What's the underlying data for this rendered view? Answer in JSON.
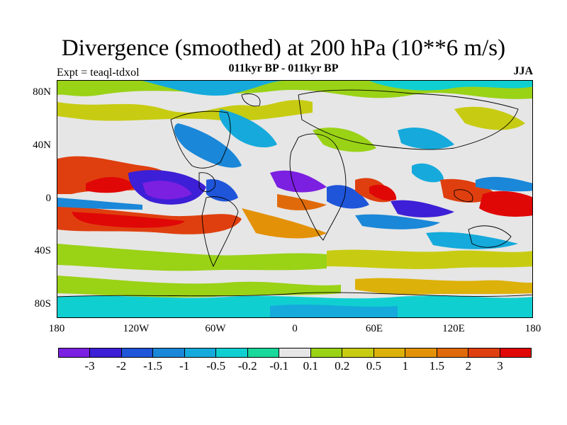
{
  "title": "Divergence (smoothed) at 200 hPa (10**6 m/s)",
  "subtitle": "011kyr BP - 011kyr BP",
  "expt_label": "Expt = teaql-tdxol",
  "season": "JJA",
  "y_ticks": [
    "80N",
    "40N",
    "0",
    "40S",
    "80S"
  ],
  "x_ticks": [
    "180",
    "120W",
    "60W",
    "0",
    "60E",
    "120E",
    "180"
  ],
  "colorbar": {
    "colors": [
      "#7b1fe0",
      "#3c1fd6",
      "#1f55d9",
      "#1a87d8",
      "#15aadb",
      "#10cfd1",
      "#18d89a",
      "#e6e6e6",
      "#9ad216",
      "#c7cc12",
      "#dcb109",
      "#e39107",
      "#e06a0a",
      "#df3f0f",
      "#e00707"
    ],
    "labels": [
      "-3",
      "-2",
      "-1.5",
      "-1",
      "-0.5",
      "-0.2",
      "-0.1",
      "0.1",
      "0.2",
      "0.5",
      "1",
      "1.5",
      "2",
      "3"
    ]
  }
}
